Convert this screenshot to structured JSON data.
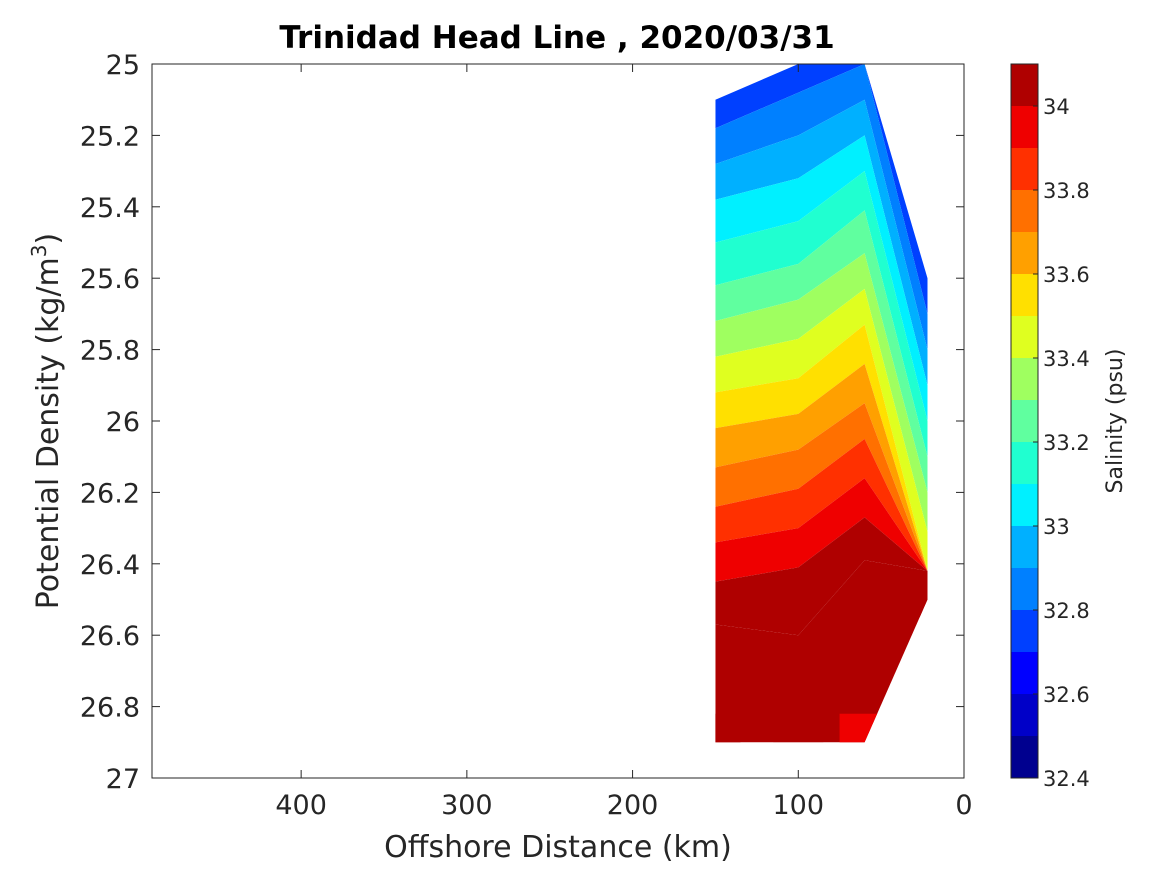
{
  "chart_data": {
    "type": "heatmap",
    "subtype": "filled-contour",
    "title": "Trinidad Head Line , 2020/03/31",
    "xlabel": "Offshore Distance (km)",
    "ylabel_prefix": "Potential Density (kg/m",
    "ylabel_superscript": "3",
    "ylabel_suffix": ")",
    "xlim": [
      490,
      0
    ],
    "x_reversed": true,
    "ylim": [
      25,
      27
    ],
    "y_reversed": true,
    "x_ticks": [
      400,
      300,
      200,
      100,
      0
    ],
    "y_ticks": [
      25,
      25.2,
      25.4,
      25.6,
      25.8,
      26,
      26.2,
      26.4,
      26.6,
      26.8,
      27
    ],
    "y_tick_labels": [
      "25",
      "25.2",
      "25.4",
      "25.6",
      "25.8",
      "26",
      "26.2",
      "26.4",
      "26.6",
      "26.8",
      "27"
    ],
    "colorbar": {
      "label": "Salinity (psu)",
      "range": [
        32.4,
        34.1
      ],
      "ticks": [
        32.4,
        32.6,
        32.8,
        33,
        33.2,
        33.4,
        33.6,
        33.8,
        34
      ],
      "tick_labels": [
        "32.4",
        "32.6",
        "32.8",
        "33",
        "33.2",
        "33.4",
        "33.6",
        "33.8",
        "34"
      ],
      "levels": [
        32.4,
        32.5,
        32.6,
        32.7,
        32.8,
        32.9,
        33.0,
        33.1,
        33.2,
        33.3,
        33.4,
        33.5,
        33.6,
        33.7,
        33.8,
        33.9,
        34.0,
        34.1
      ],
      "colors": [
        "#00008f",
        "#0000c8",
        "#0000ff",
        "#0040ff",
        "#0080ff",
        "#00b0ff",
        "#00f0ff",
        "#20ffd0",
        "#60ff9f",
        "#9fff60",
        "#dfff20",
        "#ffe000",
        "#ffa000",
        "#ff7000",
        "#ff3000",
        "#ef0000",
        "#af0000"
      ]
    },
    "stations": [
      {
        "x": 150,
        "top": 25.1,
        "bottom": 26.9,
        "bands": [
          {
            "y": 25.18,
            "s": 32.75
          },
          {
            "y": 25.28,
            "s": 32.85
          },
          {
            "y": 25.38,
            "s": 32.95
          },
          {
            "y": 25.5,
            "s": 33.05
          },
          {
            "y": 25.62,
            "s": 33.15
          },
          {
            "y": 25.72,
            "s": 33.25
          },
          {
            "y": 25.82,
            "s": 33.35
          },
          {
            "y": 25.92,
            "s": 33.45
          },
          {
            "y": 26.02,
            "s": 33.55
          },
          {
            "y": 26.13,
            "s": 33.65
          },
          {
            "y": 26.24,
            "s": 33.75
          },
          {
            "y": 26.34,
            "s": 33.85
          },
          {
            "y": 26.45,
            "s": 33.95
          },
          {
            "y": 26.57,
            "s": 34.05
          },
          {
            "y": 26.82,
            "s": 34.15
          }
        ]
      },
      {
        "x": 100,
        "top": 25.0,
        "bottom": 26.9,
        "bands": [
          {
            "y": 25.08,
            "s": 32.65
          },
          {
            "y": 25.2,
            "s": 32.75
          },
          {
            "y": 25.32,
            "s": 32.85
          },
          {
            "y": 25.44,
            "s": 32.95
          },
          {
            "y": 25.56,
            "s": 33.05
          },
          {
            "y": 25.66,
            "s": 33.15
          },
          {
            "y": 25.77,
            "s": 33.25
          },
          {
            "y": 25.88,
            "s": 33.35
          },
          {
            "y": 25.98,
            "s": 33.45
          },
          {
            "y": 26.08,
            "s": 33.55
          },
          {
            "y": 26.19,
            "s": 33.65
          },
          {
            "y": 26.3,
            "s": 33.75
          },
          {
            "y": 26.41,
            "s": 33.85
          },
          {
            "y": 26.6,
            "s": 33.95
          },
          {
            "y": 26.9,
            "s": 34.05
          }
        ]
      },
      {
        "x": 60,
        "top": 25.0,
        "bottom": 26.9,
        "bands": [
          {
            "y": 25.0,
            "s": 32.45
          },
          {
            "y": 25.1,
            "s": 32.55
          },
          {
            "y": 25.2,
            "s": 32.65
          },
          {
            "y": 25.3,
            "s": 32.75
          },
          {
            "y": 25.41,
            "s": 32.85
          },
          {
            "y": 25.53,
            "s": 32.95
          },
          {
            "y": 25.63,
            "s": 33.05
          },
          {
            "y": 25.73,
            "s": 33.15
          },
          {
            "y": 25.84,
            "s": 33.25
          },
          {
            "y": 25.95,
            "s": 33.35
          },
          {
            "y": 26.05,
            "s": 33.45
          },
          {
            "y": 26.16,
            "s": 33.55
          },
          {
            "y": 26.27,
            "s": 33.65
          },
          {
            "y": 26.39,
            "s": 33.75
          },
          {
            "y": 26.82,
            "s": 33.95
          }
        ]
      },
      {
        "x": 22,
        "top": 25.6,
        "bottom": 26.5,
        "bands": [
          {
            "y": 25.7,
            "s": 33.35
          },
          {
            "y": 25.8,
            "s": 33.45
          },
          {
            "y": 25.9,
            "s": 33.55
          },
          {
            "y": 26.0,
            "s": 33.65
          },
          {
            "y": 26.1,
            "s": 33.75
          },
          {
            "y": 26.2,
            "s": 33.85
          },
          {
            "y": 26.31,
            "s": 33.95
          },
          {
            "y": 26.42,
            "s": 34.05
          }
        ]
      }
    ]
  }
}
